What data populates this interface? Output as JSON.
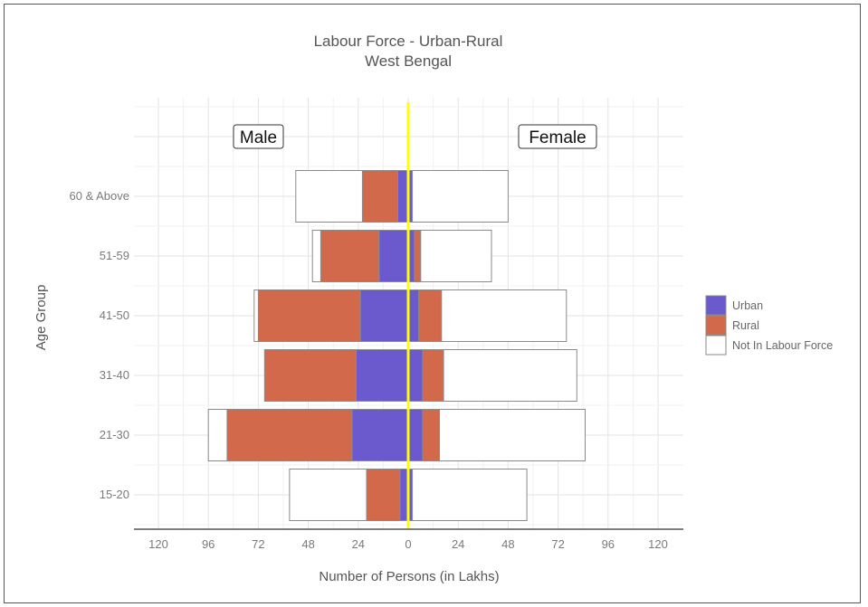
{
  "chart_data": {
    "type": "bar",
    "orientation": "horizontal",
    "stacked": true,
    "title": "Labour Force - Urban-Rural",
    "subtitle": "West Bengal",
    "xlabel": "Number of Persons (in Lakhs)",
    "ylabel": "Age Group",
    "xlim": [
      -120,
      120
    ],
    "x_ticks": [
      -120,
      -96,
      -72,
      -48,
      -24,
      0,
      24,
      48,
      72,
      96,
      120
    ],
    "x_tick_labels": [
      "120",
      "96",
      "72",
      "48",
      "24",
      "0",
      "24",
      "48",
      "72",
      "96",
      "120"
    ],
    "grid": true,
    "legend_position": "right",
    "panel_labels": {
      "left": "Male",
      "right": "Female"
    },
    "categories": [
      "15-20",
      "21-30",
      "31-40",
      "41-50",
      "51-59",
      "60 & Above"
    ],
    "series": [
      {
        "name": "Urban",
        "color": "#6a5acd",
        "male": [
          4,
          27,
          25,
          23,
          14,
          5
        ],
        "female": [
          2,
          7,
          7,
          5,
          3,
          2
        ]
      },
      {
        "name": "Rural",
        "color": "#d2694b",
        "male": [
          16,
          60,
          44,
          49,
          28,
          17
        ],
        "female": [
          0,
          8,
          10,
          11,
          3,
          0
        ]
      },
      {
        "name": "Not In Labour Force",
        "color": "#ffffff",
        "male": [
          37,
          9,
          0,
          2,
          4,
          32
        ],
        "female": [
          55,
          70,
          64,
          60,
          34,
          46
        ]
      }
    ],
    "zero_line_color": "#ffff00"
  }
}
